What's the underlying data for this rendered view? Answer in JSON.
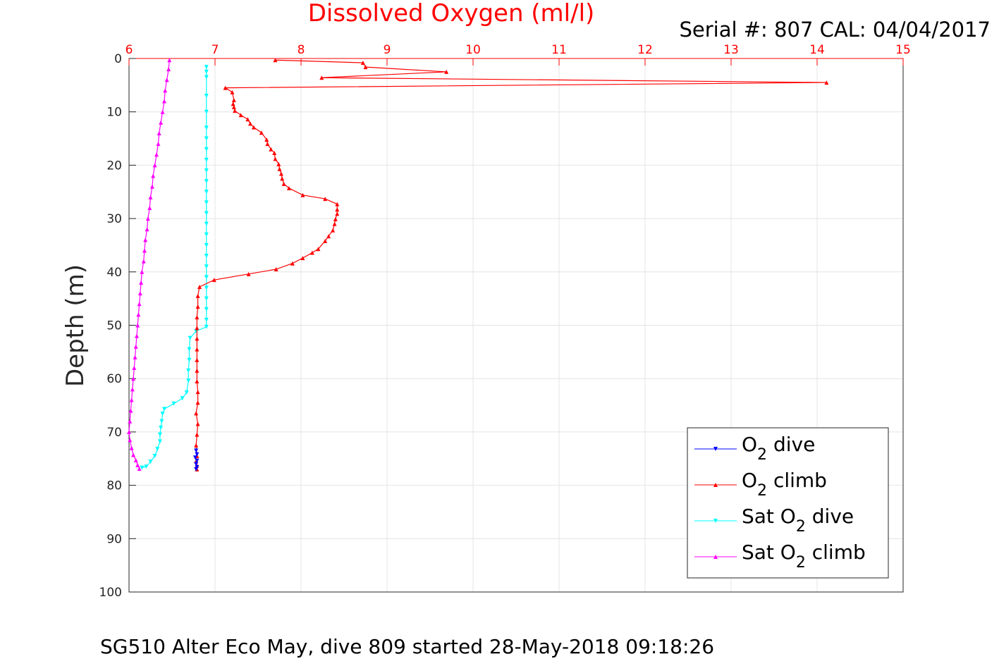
{
  "chart_data": {
    "type": "line",
    "title": "Dissolved Oxygen (ml/l)",
    "subtitle": "Serial #: 807  CAL: 04/04/2017",
    "caption": "SG510 Alter Eco May, dive 809 started 28-May-2018 09:18:26",
    "xlabel": "",
    "ylabel": "Depth (m)",
    "xlim": [
      6,
      15
    ],
    "ylim": [
      0,
      100
    ],
    "y_reversed": true,
    "x_axis_position": "top",
    "xticks": [
      "6",
      "7",
      "8",
      "9",
      "10",
      "11",
      "12",
      "13",
      "14",
      "15"
    ],
    "yticks": [
      "0",
      "10",
      "20",
      "30",
      "40",
      "50",
      "60",
      "70",
      "80",
      "90",
      "100"
    ],
    "grid": true,
    "legend_position": "bottom-right",
    "colors": {
      "title": "#ff0000",
      "xaxis": "#ff0000"
    },
    "series": [
      {
        "name": "O2 dive",
        "legend": {
          "main": "O",
          "sub": "2",
          "rest": " dive"
        },
        "color": "#0000ff",
        "marker": "down-triangle",
        "points": [
          [
            6.78,
            73.5
          ],
          [
            6.79,
            74.2
          ],
          [
            6.77,
            74.8
          ],
          [
            6.79,
            75.4
          ],
          [
            6.78,
            76.0
          ],
          [
            6.79,
            76.6
          ],
          [
            6.78,
            77.0
          ]
        ]
      },
      {
        "name": "O2 climb",
        "legend": {
          "main": "O",
          "sub": "2",
          "rest": " climb"
        },
        "color": "#ff0000",
        "marker": "up-triangle",
        "points": [
          [
            7.7,
            0.3
          ],
          [
            8.72,
            0.8
          ],
          [
            8.75,
            1.6
          ],
          [
            9.69,
            2.5
          ],
          [
            8.24,
            3.6
          ],
          [
            14.11,
            4.5
          ],
          [
            7.12,
            5.5
          ],
          [
            7.2,
            6.3
          ],
          [
            7.22,
            7.8
          ],
          [
            7.21,
            8.5
          ],
          [
            7.22,
            9.1
          ],
          [
            7.23,
            9.8
          ],
          [
            7.3,
            10.6
          ],
          [
            7.38,
            11.4
          ],
          [
            7.41,
            12.2
          ],
          [
            7.45,
            12.9
          ],
          [
            7.54,
            13.9
          ],
          [
            7.6,
            15.2
          ],
          [
            7.61,
            16.0
          ],
          [
            7.65,
            17.0
          ],
          [
            7.69,
            17.7
          ],
          [
            7.7,
            18.8
          ],
          [
            7.74,
            19.8
          ],
          [
            7.75,
            20.7
          ],
          [
            7.77,
            21.6
          ],
          [
            7.78,
            22.5
          ],
          [
            7.8,
            23.5
          ],
          [
            7.86,
            24.3
          ],
          [
            8.02,
            25.6
          ],
          [
            8.28,
            26.3
          ],
          [
            8.42,
            27.3
          ],
          [
            8.42,
            28.3
          ],
          [
            8.42,
            29.1
          ],
          [
            8.4,
            30.1
          ],
          [
            8.39,
            31.0
          ],
          [
            8.37,
            32.2
          ],
          [
            8.32,
            33.3
          ],
          [
            8.28,
            34.2
          ],
          [
            8.2,
            35.7
          ],
          [
            8.13,
            36.4
          ],
          [
            8.02,
            37.4
          ],
          [
            7.9,
            38.4
          ],
          [
            7.71,
            39.5
          ],
          [
            7.39,
            40.4
          ],
          [
            6.99,
            41.5
          ],
          [
            6.82,
            42.8
          ],
          [
            6.8,
            44.5
          ],
          [
            6.8,
            46.5
          ],
          [
            6.79,
            48.5
          ],
          [
            6.79,
            50.5
          ],
          [
            6.79,
            52.5
          ],
          [
            6.79,
            54.5
          ],
          [
            6.79,
            56.5
          ],
          [
            6.79,
            58.5
          ],
          [
            6.79,
            60.5
          ],
          [
            6.8,
            62.5
          ],
          [
            6.8,
            64.5
          ],
          [
            6.78,
            66.5
          ],
          [
            6.8,
            68.5
          ],
          [
            6.79,
            70.5
          ],
          [
            6.78,
            72.5
          ],
          [
            6.79,
            74.5
          ],
          [
            6.78,
            75.5
          ],
          [
            6.79,
            76.3
          ],
          [
            6.79,
            77.0
          ]
        ]
      },
      {
        "name": "Sat O2 dive",
        "legend": {
          "main": "Sat O",
          "sub": "2",
          "rest": " dive"
        },
        "color": "#00ffff",
        "marker": "down-triangle",
        "points": [
          [
            6.9,
            1.6
          ],
          [
            6.9,
            2.5
          ],
          [
            6.9,
            3.5
          ],
          [
            6.9,
            7.0
          ],
          [
            6.9,
            10.0
          ],
          [
            6.9,
            13.0
          ],
          [
            6.9,
            15.0
          ],
          [
            6.9,
            17.0
          ],
          [
            6.9,
            19.0
          ],
          [
            6.9,
            21.0
          ],
          [
            6.9,
            23.0
          ],
          [
            6.9,
            25.0
          ],
          [
            6.9,
            27.0
          ],
          [
            6.9,
            29.0
          ],
          [
            6.9,
            31.0
          ],
          [
            6.9,
            33.0
          ],
          [
            6.9,
            35.0
          ],
          [
            6.9,
            37.0
          ],
          [
            6.9,
            39.0
          ],
          [
            6.9,
            41.0
          ],
          [
            6.9,
            43.0
          ],
          [
            6.9,
            45.0
          ],
          [
            6.9,
            47.0
          ],
          [
            6.9,
            49.0
          ],
          [
            6.9,
            50.3
          ],
          [
            6.78,
            51.1
          ],
          [
            6.71,
            52.4
          ],
          [
            6.7,
            54.5
          ],
          [
            6.7,
            56.5
          ],
          [
            6.69,
            58.5
          ],
          [
            6.69,
            60.4
          ],
          [
            6.67,
            62.6
          ],
          [
            6.62,
            63.7
          ],
          [
            6.52,
            64.7
          ],
          [
            6.41,
            65.7
          ],
          [
            6.39,
            66.6
          ],
          [
            6.38,
            68.0
          ],
          [
            6.37,
            69.2
          ],
          [
            6.36,
            70.5
          ],
          [
            6.36,
            71.8
          ],
          [
            6.33,
            73.2
          ],
          [
            6.3,
            74.5
          ],
          [
            6.25,
            75.6
          ],
          [
            6.2,
            76.5
          ],
          [
            6.15,
            76.7
          ]
        ]
      },
      {
        "name": "Sat O2 climb",
        "legend": {
          "main": "Sat O",
          "sub": "2",
          "rest": " climb"
        },
        "color": "#ff00ff",
        "marker": "up-triangle",
        "points": [
          [
            6.47,
            0.3
          ],
          [
            6.46,
            2.0
          ],
          [
            6.44,
            4.0
          ],
          [
            6.42,
            6.0
          ],
          [
            6.41,
            8.0
          ],
          [
            6.39,
            10.0
          ],
          [
            6.37,
            12.0
          ],
          [
            6.35,
            14.0
          ],
          [
            6.34,
            16.0
          ],
          [
            6.32,
            18.0
          ],
          [
            6.3,
            20.0
          ],
          [
            6.28,
            22.0
          ],
          [
            6.27,
            24.0
          ],
          [
            6.25,
            26.0
          ],
          [
            6.24,
            28.0
          ],
          [
            6.22,
            30.0
          ],
          [
            6.21,
            32.0
          ],
          [
            6.19,
            34.0
          ],
          [
            6.18,
            36.0
          ],
          [
            6.17,
            38.0
          ],
          [
            6.15,
            40.0
          ],
          [
            6.14,
            42.0
          ],
          [
            6.13,
            44.0
          ],
          [
            6.12,
            46.0
          ],
          [
            6.11,
            48.0
          ],
          [
            6.1,
            50.0
          ],
          [
            6.09,
            52.0
          ],
          [
            6.08,
            54.0
          ],
          [
            6.07,
            56.0
          ],
          [
            6.06,
            58.0
          ],
          [
            6.05,
            60.0
          ],
          [
            6.04,
            62.0
          ],
          [
            6.03,
            64.0
          ],
          [
            6.02,
            66.0
          ],
          [
            6.01,
            68.0
          ],
          [
            6.0,
            70.0
          ],
          [
            6.01,
            71.5
          ],
          [
            6.03,
            73.0
          ],
          [
            6.05,
            74.3
          ],
          [
            6.08,
            75.3
          ],
          [
            6.1,
            76.2
          ],
          [
            6.12,
            76.9
          ]
        ]
      }
    ]
  }
}
